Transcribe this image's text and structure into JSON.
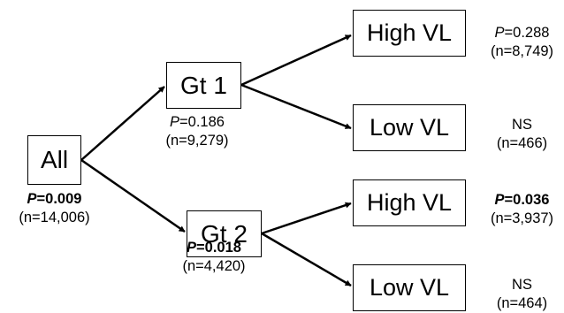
{
  "nodes": {
    "all": {
      "label": "All",
      "p_symbol": "P",
      "p_value": "=0.009",
      "p_bold": true,
      "n": "(n=14,006)"
    },
    "gt1": {
      "label": "Gt 1",
      "p_symbol": "P",
      "p_value": "=0.186",
      "p_bold": false,
      "n": "(n=9,279)"
    },
    "gt2": {
      "label": "Gt 2",
      "p_symbol": "P",
      "p_value": "=0.018",
      "p_bold": true,
      "n": "(n=4,420)"
    },
    "high1": {
      "label": "High VL",
      "p_symbol": "P",
      "p_value": "=0.288",
      "p_bold": false,
      "n": "(n=8,749)"
    },
    "low1": {
      "label": "Low VL",
      "p_symbol": "",
      "p_value": "NS",
      "p_bold": false,
      "n": "(n=466)"
    },
    "high2": {
      "label": "High VL",
      "p_symbol": "P",
      "p_value": "=0.036",
      "p_bold": true,
      "n": "(n=3,937)"
    },
    "low2": {
      "label": "Low VL",
      "p_symbol": "",
      "p_value": "NS",
      "p_bold": false,
      "n": "(n=464)"
    }
  },
  "edges": [
    {
      "from": "all",
      "to": "gt1"
    },
    {
      "from": "all",
      "to": "gt2"
    },
    {
      "from": "gt1",
      "to": "high1"
    },
    {
      "from": "gt1",
      "to": "low1"
    },
    {
      "from": "gt2",
      "to": "high2"
    },
    {
      "from": "gt2",
      "to": "low2"
    }
  ],
  "colors": {
    "line": "#000000",
    "text": "#000000",
    "background": "#ffffff"
  }
}
